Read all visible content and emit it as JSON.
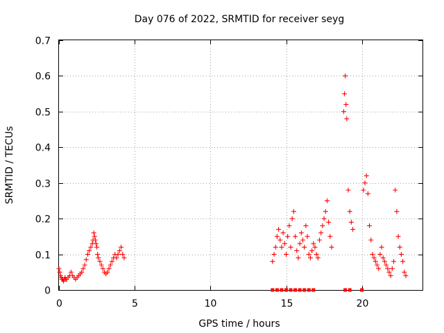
{
  "chart_data": {
    "type": "scatter",
    "title": "Day 076 of 2022, SRMTID for receiver seyg",
    "xlabel": "GPS time / hours",
    "ylabel": "SRMTID / TECUs",
    "xlim": [
      0,
      24
    ],
    "ylim": [
      0,
      0.7
    ],
    "x_ticks": [
      0,
      5,
      10,
      15,
      20
    ],
    "x_tick_labels": [
      "0",
      "5",
      "10",
      "15",
      "20"
    ],
    "y_ticks": [
      0,
      0.1,
      0.2,
      0.3,
      0.4,
      0.5,
      0.6,
      0.7
    ],
    "y_tick_labels": [
      "0",
      "0.1",
      "0.2",
      "0.3",
      "0.4",
      "0.5",
      "0.6",
      "0.7"
    ],
    "grid": true,
    "marker": "plus",
    "color": "#ff0000",
    "series": [
      {
        "name": "SRMTID",
        "x": [
          0.0,
          0.05,
          0.1,
          0.15,
          0.2,
          0.25,
          0.3,
          0.35,
          0.4,
          0.45,
          0.5,
          0.6,
          0.7,
          0.8,
          0.9,
          1.0,
          1.1,
          1.2,
          1.3,
          1.4,
          1.5,
          1.6,
          1.7,
          1.8,
          1.9,
          2.0,
          2.1,
          2.2,
          2.25,
          2.3,
          2.35,
          2.4,
          2.45,
          2.5,
          2.55,
          2.6,
          2.7,
          2.8,
          2.9,
          3.0,
          3.1,
          3.2,
          3.3,
          3.4,
          3.5,
          3.6,
          3.7,
          3.8,
          3.9,
          4.0,
          4.1,
          4.2,
          4.3,
          14.1,
          14.2,
          14.3,
          14.4,
          14.5,
          14.6,
          14.7,
          14.8,
          14.9,
          15.0,
          15.1,
          15.2,
          15.3,
          15.4,
          15.5,
          15.6,
          15.7,
          15.8,
          15.9,
          16.0,
          16.1,
          16.2,
          16.3,
          16.4,
          16.5,
          16.6,
          16.7,
          16.8,
          16.9,
          17.0,
          17.1,
          17.2,
          17.3,
          17.4,
          17.5,
          17.6,
          17.7,
          17.8,
          17.9,
          18.0,
          18.8,
          18.85,
          18.9,
          18.95,
          19.0,
          19.1,
          19.2,
          19.3,
          19.4,
          20.1,
          20.2,
          20.3,
          20.4,
          20.5,
          20.6,
          20.7,
          20.8,
          20.9,
          21.0,
          21.1,
          21.2,
          21.3,
          21.4,
          21.5,
          21.6,
          21.7,
          21.8,
          21.9,
          22.0,
          22.1,
          22.2,
          22.3,
          22.4,
          22.5,
          22.6,
          22.7,
          22.8,
          22.9,
          14.1,
          14.4,
          14.7,
          15.0,
          15.3,
          15.6,
          15.9,
          16.2,
          16.5,
          16.8,
          18.9,
          19.2,
          20.0
        ],
        "y": [
          0.06,
          0.05,
          0.04,
          0.035,
          0.03,
          0.03,
          0.025,
          0.03,
          0.035,
          0.03,
          0.03,
          0.035,
          0.04,
          0.05,
          0.04,
          0.035,
          0.03,
          0.035,
          0.04,
          0.045,
          0.05,
          0.06,
          0.07,
          0.085,
          0.1,
          0.11,
          0.12,
          0.13,
          0.14,
          0.16,
          0.15,
          0.14,
          0.13,
          0.12,
          0.1,
          0.09,
          0.08,
          0.07,
          0.06,
          0.05,
          0.045,
          0.05,
          0.06,
          0.07,
          0.08,
          0.09,
          0.1,
          0.09,
          0.1,
          0.11,
          0.12,
          0.1,
          0.09,
          0.08,
          0.1,
          0.12,
          0.15,
          0.17,
          0.14,
          0.12,
          0.16,
          0.13,
          0.1,
          0.15,
          0.18,
          0.12,
          0.2,
          0.22,
          0.15,
          0.11,
          0.09,
          0.13,
          0.16,
          0.14,
          0.12,
          0.18,
          0.15,
          0.1,
          0.09,
          0.11,
          0.13,
          0.12,
          0.1,
          0.09,
          0.14,
          0.16,
          0.18,
          0.2,
          0.22,
          0.25,
          0.19,
          0.15,
          0.12,
          0.5,
          0.55,
          0.6,
          0.52,
          0.48,
          0.28,
          0.22,
          0.19,
          0.17,
          0.28,
          0.3,
          0.32,
          0.27,
          0.18,
          0.14,
          0.1,
          0.09,
          0.08,
          0.07,
          0.06,
          0.1,
          0.12,
          0.09,
          0.08,
          0.07,
          0.06,
          0.05,
          0.04,
          0.06,
          0.08,
          0.28,
          0.22,
          0.15,
          0.12,
          0.1,
          0.08,
          0.05,
          0.04,
          0.0,
          0.0,
          0.0,
          0.0,
          0.0,
          0.0,
          0.0,
          0.0,
          0.0,
          0.0,
          0.0,
          0.0,
          0.0
        ]
      }
    ]
  }
}
